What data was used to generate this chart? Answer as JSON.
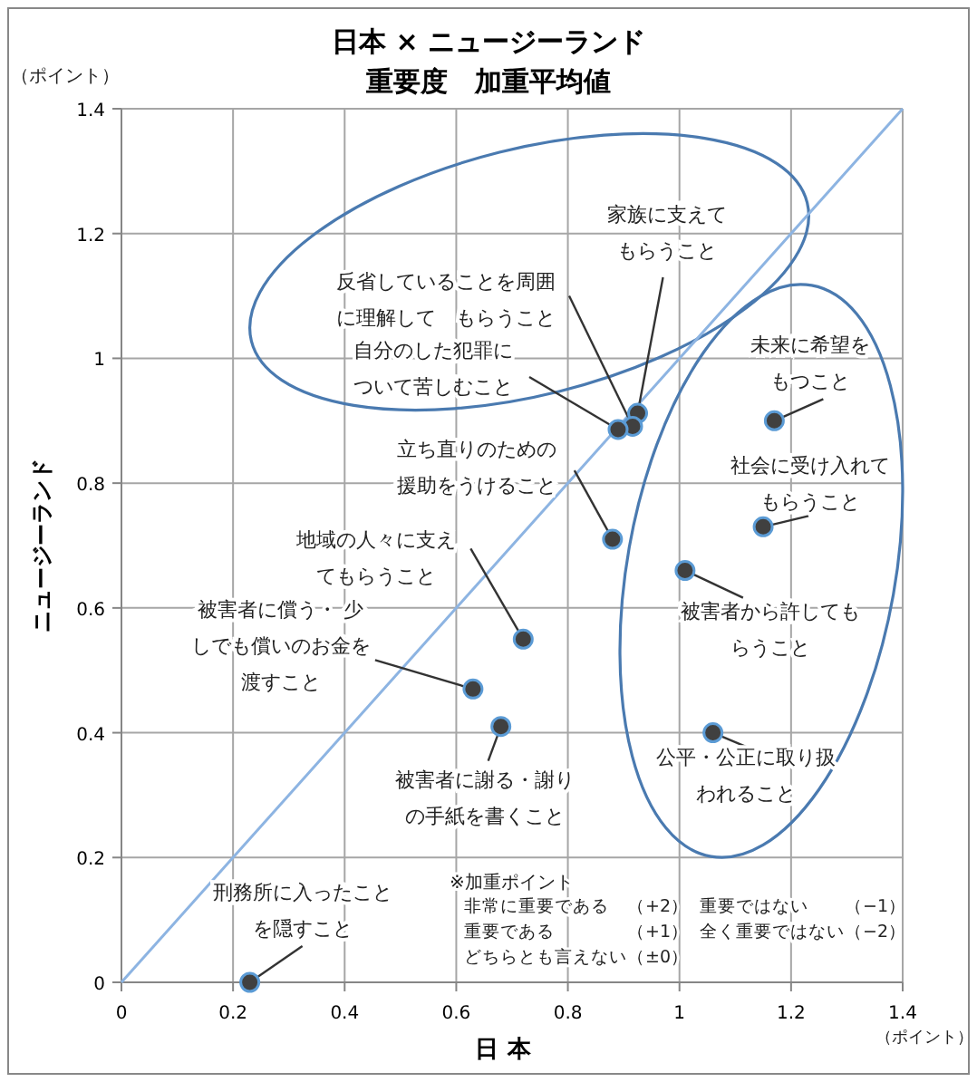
{
  "chart_data": {
    "type": "scatter",
    "title": "日本 × ニュージーランド",
    "subtitle": "重要度　加重平均値",
    "xlabel": "日 本",
    "ylabel": "ニュージーランド",
    "xlim": [
      0,
      1.4
    ],
    "ylim": [
      0,
      1.4
    ],
    "xticks": [
      0,
      0.2,
      0.4,
      0.6,
      0.8,
      1,
      1.2,
      1.4
    ],
    "yticks": [
      0,
      0.2,
      0.4,
      0.6,
      0.8,
      1,
      1.2,
      1.4
    ],
    "grid": true,
    "series": [
      {
        "type": "scatter",
        "marker": "circle",
        "color": "#404040",
        "x": [
          0.925,
          0.916,
          0.89,
          0.88,
          0.72,
          0.63,
          0.68,
          0.23,
          1.17,
          1.15,
          1.01,
          1.06
        ],
        "values": [
          0.912,
          0.891,
          0.886,
          0.71,
          0.55,
          0.47,
          0.41,
          0.0,
          0.9,
          0.73,
          0.66,
          0.4
        ]
      },
      {
        "type": "line",
        "color": "#8db4e2",
        "x": [
          0,
          1.4
        ],
        "values": [
          0,
          1.4
        ]
      }
    ],
    "annotations": [
      {
        "text": "家族に支えてもらうこと",
        "x": 0.925,
        "y": 0.912
      },
      {
        "text": "反省していることを周囲に理解して　もらうこと",
        "x": 0.916,
        "y": 0.891
      },
      {
        "text": "自分のした犯罪について苦しむこと",
        "x": 0.89,
        "y": 0.886
      },
      {
        "text": "立ち直りのための援助をうけること",
        "x": 0.88,
        "y": 0.71
      },
      {
        "text": "地域の人々に支えてもらうこと",
        "x": 0.72,
        "y": 0.55
      },
      {
        "text": "被害者に償う・ 少しでも償いのお金を渡すこと",
        "x": 0.63,
        "y": 0.47
      },
      {
        "text": "被害者に謝る・謝りの手紙を書くこと",
        "x": 0.68,
        "y": 0.41
      },
      {
        "text": "刑務所に入ったことを隠すこと",
        "x": 0.23,
        "y": 0.0
      },
      {
        "text": "未来に希望をもつこと",
        "x": 1.17,
        "y": 0.9
      },
      {
        "text": "社会に受け入れてもらうこと",
        "x": 1.15,
        "y": 0.73
      },
      {
        "text": "被害者から許してもらうこと",
        "x": 1.01,
        "y": 0.66
      },
      {
        "text": "公平・公正に取り扱われること",
        "x": 1.06,
        "y": 0.4
      },
      "（ポイント）",
      "（ポイント）",
      "※加重ポイント",
      "非常に重要である　（+2）",
      "重要である　　　　（+1）",
      "どちらとも言えない（±0）",
      "重要ではない　　（−1）",
      "全く重要ではない（−2）"
    ]
  }
}
